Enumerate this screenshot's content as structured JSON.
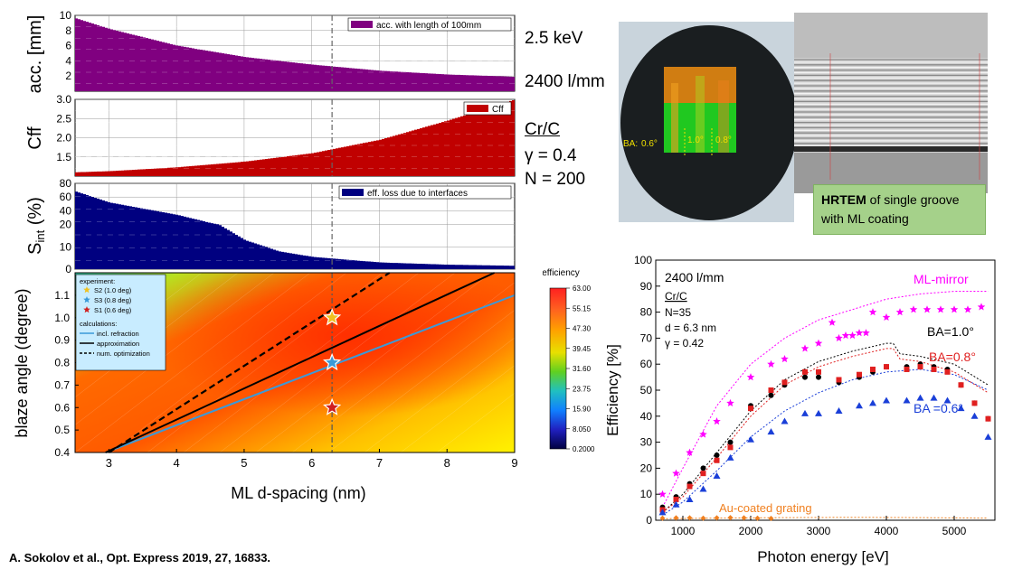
{
  "left_params": {
    "energy": "2.5 keV",
    "grating": "2400 l/mm",
    "material": "Cr/C",
    "gamma": "γ = 0.4",
    "n": "N = 200"
  },
  "photo": {
    "ba_label": "BA:",
    "ba_values": [
      "0.6°",
      "1.0°",
      "0.8°"
    ],
    "hrtem_bold": "HRTEM",
    "hrtem_rest": " of single groove with ML coating"
  },
  "citation": "A. Sokolov et al., Opt. Express 2019, 27, 16833.",
  "colors": {
    "purple": "#800080",
    "red": "#c00000",
    "navy": "#000080",
    "orange": "#f08020",
    "magenta": "#ff00ff",
    "blue": "#1a3fd8",
    "cyan": "#3a9ad9"
  },
  "chart_data": [
    {
      "type": "area",
      "id": "acc",
      "ylabel": "acc. [mm]",
      "legend": "acc. with length of 100mm",
      "x": [
        2.5,
        3,
        4,
        5,
        6,
        7,
        8,
        9
      ],
      "values": [
        9.6,
        8.2,
        6.0,
        4.5,
        3.5,
        2.7,
        2.2,
        1.9
      ],
      "ylim": [
        0,
        10
      ],
      "yticks": [
        2,
        4,
        6,
        8,
        10
      ],
      "xlim": [
        2.5,
        9
      ]
    },
    {
      "type": "area",
      "id": "cff",
      "ylabel": "Cff",
      "legend": "Cff",
      "x": [
        2.5,
        3,
        4,
        5,
        6,
        7,
        8,
        9
      ],
      "values": [
        1.1,
        1.13,
        1.23,
        1.38,
        1.6,
        1.95,
        2.45,
        3.0
      ],
      "ylim": [
        1,
        3
      ],
      "yticks": [
        1.5,
        2.0,
        2.5,
        3.0
      ],
      "ytick_labels": [
        "1.5",
        "2.0",
        "2.5",
        "3.0"
      ],
      "xlim": [
        2.5,
        9
      ]
    },
    {
      "type": "area",
      "id": "sint",
      "ylabel": "S",
      "ylabel_sub": "int",
      "ylabel_tail": " (%)",
      "legend": "eff. loss due to interfaces",
      "x": [
        2.5,
        3,
        3.5,
        4,
        4.5,
        5,
        5.5,
        6,
        7,
        8,
        9
      ],
      "values": [
        68,
        52,
        43,
        34,
        22,
        13,
        8,
        5.5,
        3,
        2,
        1.5
      ],
      "ylim": [
        0,
        80
      ],
      "yticks": [
        0,
        10,
        20,
        40,
        60,
        80
      ],
      "xlim": [
        2.5,
        9
      ]
    },
    {
      "type": "heatmap",
      "id": "blaze",
      "xlabel": "ML d-spacing (nm)",
      "ylabel": "blaze angle (degree)",
      "xlim": [
        2.5,
        9
      ],
      "ylim": [
        0.4,
        1.2
      ],
      "xticks": [
        3,
        4,
        5,
        6,
        7,
        8,
        9
      ],
      "yticks": [
        0.4,
        0.5,
        0.6,
        0.7,
        0.8,
        0.9,
        1.0,
        1.1
      ],
      "ytick_labels": [
        "0.4",
        "0.5",
        "0.6",
        "0.7",
        "0.8",
        "0.9",
        "1.0",
        "1.1"
      ],
      "colorbar_title": "efficiency",
      "colorbar_ticks": [
        "63.00",
        "55.15",
        "47.30",
        "39.45",
        "31.60",
        "23.75",
        "15.90",
        "8.050",
        "0.2000"
      ],
      "legend_experiment_title": "experiment:",
      "experiment": [
        {
          "name": "S2 (1.0 deg)",
          "x": 6.3,
          "y": 1.0,
          "color": "#f0c020"
        },
        {
          "name": "S3 (0.8 deg)",
          "x": 6.3,
          "y": 0.8,
          "color": "#3a9ad9"
        },
        {
          "name": "S1 (0.6 deg)",
          "x": 6.3,
          "y": 0.6,
          "color": "#d02020"
        }
      ],
      "legend_calc_title": "calculations:",
      "lines": [
        {
          "name": "incl. refraction",
          "style": "solid",
          "color": "#3a9ad9",
          "x": [
            2.95,
            9
          ],
          "y": [
            0.4,
            1.1
          ]
        },
        {
          "name": "approximation",
          "style": "solid",
          "color": "#000000",
          "x": [
            2.95,
            8.7
          ],
          "y": [
            0.4,
            1.2
          ]
        },
        {
          "name": "num. optimization",
          "style": "dashed",
          "color": "#000000",
          "x": [
            3.0,
            7.15
          ],
          "y": [
            0.4,
            1.2
          ]
        }
      ]
    },
    {
      "type": "scatter",
      "id": "efficiency",
      "xlabel": "Photon energy [eV]",
      "ylabel": "Efficiency [%]",
      "xlim": [
        600,
        5600
      ],
      "ylim": [
        0,
        100
      ],
      "xticks": [
        1000,
        2000,
        3000,
        4000,
        5000
      ],
      "yticks": [
        0,
        10,
        20,
        30,
        40,
        50,
        60,
        70,
        80,
        90,
        100
      ],
      "info": [
        "2400 l/mm",
        "Cr/C",
        "N=35",
        "d = 6.3 nm",
        "γ = 0.42"
      ],
      "labels": {
        "ml_mirror": "ML-mirror",
        "ba10": "BA=1.0°",
        "ba08": "BA=0.8°",
        "ba06": "BA =0.6°",
        "au": "Au-coated grating"
      },
      "series": [
        {
          "name": "ML-mirror",
          "marker": "star",
          "color": "#ff00ff",
          "x": [
            700,
            900,
            1100,
            1300,
            1500,
            1700,
            2000,
            2300,
            2500,
            2800,
            3000,
            3200,
            3300,
            3400,
            3500,
            3600,
            3700,
            3800,
            4000,
            4200,
            4400,
            4600,
            4800,
            5000,
            5200,
            5400
          ],
          "values": [
            10,
            18,
            26,
            33,
            38,
            45,
            55,
            60,
            62,
            66,
            68,
            76,
            70,
            71,
            71,
            72,
            72,
            80,
            78,
            80,
            81,
            81,
            81,
            81,
            81,
            82
          ]
        },
        {
          "name": "BA=1.0",
          "marker": "circle",
          "color": "#000000",
          "x": [
            700,
            900,
            1100,
            1300,
            1500,
            1700,
            2000,
            2300,
            2500,
            2800,
            3000,
            3300,
            3600,
            3800,
            4000,
            4300,
            4500,
            4700,
            4900,
            5100,
            5300,
            5500
          ],
          "values": [
            5,
            9,
            14,
            20,
            25,
            30,
            44,
            48,
            52,
            55,
            55,
            53,
            55,
            57,
            59,
            59,
            60,
            59,
            58,
            52,
            45,
            39
          ]
        },
        {
          "name": "BA=0.8",
          "marker": "square",
          "color": "#e02020",
          "x": [
            700,
            900,
            1100,
            1300,
            1500,
            1700,
            2000,
            2300,
            2500,
            2800,
            3000,
            3300,
            3600,
            3800,
            4000,
            4300,
            4500,
            4700,
            4900,
            5100,
            5300,
            5500
          ],
          "values": [
            4,
            8,
            13,
            18,
            23,
            28,
            43,
            50,
            53,
            57,
            57,
            54,
            56,
            58,
            59,
            58,
            59,
            58,
            57,
            52,
            45,
            39
          ]
        },
        {
          "name": "BA=0.6",
          "marker": "triangle",
          "color": "#1a3fd8",
          "x": [
            700,
            900,
            1100,
            1300,
            1500,
            1700,
            2000,
            2300,
            2500,
            2800,
            3000,
            3300,
            3600,
            3800,
            4000,
            4300,
            4500,
            4700,
            4900,
            5100,
            5300,
            5500
          ],
          "values": [
            3,
            6,
            8,
            12,
            17,
            24,
            31,
            34,
            38,
            41,
            41,
            42,
            44,
            45,
            46,
            46,
            47,
            47,
            46,
            43,
            40,
            32
          ]
        },
        {
          "name": "Au-coated grating",
          "marker": "diamond",
          "color": "#f08020",
          "x": [
            700,
            900,
            1100,
            1300,
            1500,
            1700,
            1900,
            2100,
            2300
          ],
          "values": [
            0.8,
            0.9,
            0.9,
            0.8,
            0.9,
            1.0,
            0.9,
            0.8,
            0.7
          ]
        }
      ],
      "curves": [
        {
          "name": "ML-mirror calc",
          "color": "#ff00ff",
          "x": [
            700,
            1000,
            1500,
            2000,
            2500,
            3000,
            3500,
            4000,
            4500,
            5000,
            5500
          ],
          "values": [
            5,
            20,
            44,
            60,
            70,
            77,
            81,
            85,
            87,
            88,
            88
          ]
        },
        {
          "name": "BA=1.0 calc",
          "color": "#000000",
          "x": [
            700,
            1000,
            1500,
            2000,
            2500,
            3000,
            3500,
            4000,
            4100,
            4200,
            4500,
            5000,
            5500
          ],
          "values": [
            3,
            10,
            26,
            42,
            54,
            61,
            65,
            68,
            68,
            64,
            63,
            60,
            52
          ]
        },
        {
          "name": "BA=0.8 calc",
          "color": "#e02020",
          "x": [
            700,
            1000,
            1500,
            2000,
            2500,
            3000,
            3500,
            4000,
            4100,
            4200,
            4500,
            5000,
            5500
          ],
          "values": [
            3,
            9,
            24,
            40,
            52,
            59,
            63,
            66,
            66,
            62,
            61,
            57,
            49
          ]
        },
        {
          "name": "BA=0.6 calc",
          "color": "#1a3fd8",
          "x": [
            700,
            1000,
            1500,
            2000,
            2500,
            3000,
            3500,
            4000,
            4500,
            5000,
            5500
          ],
          "values": [
            2,
            7,
            19,
            32,
            42,
            49,
            54,
            57,
            58,
            56,
            50
          ]
        },
        {
          "name": "Au calc",
          "color": "#f08020",
          "x": [
            700,
            1500,
            2500,
            3500,
            4500,
            5500
          ],
          "values": [
            0.6,
            0.8,
            1.0,
            1.1,
            1.0,
            0.8
          ]
        }
      ]
    }
  ]
}
